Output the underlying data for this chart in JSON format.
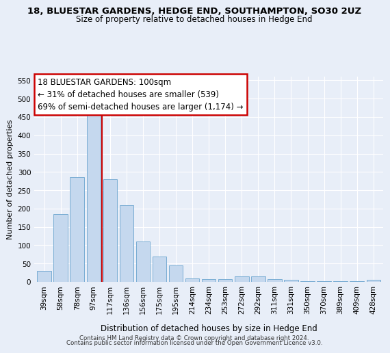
{
  "title": "18, BLUESTAR GARDENS, HEDGE END, SOUTHAMPTON, SO30 2UZ",
  "subtitle": "Size of property relative to detached houses in Hedge End",
  "xlabel": "Distribution of detached houses by size in Hedge End",
  "ylabel": "Number of detached properties",
  "bar_color": "#c5d8ee",
  "bar_edge_color": "#7aadd4",
  "categories": [
    "39sqm",
    "58sqm",
    "78sqm",
    "97sqm",
    "117sqm",
    "136sqm",
    "156sqm",
    "175sqm",
    "195sqm",
    "214sqm",
    "234sqm",
    "253sqm",
    "272sqm",
    "292sqm",
    "311sqm",
    "331sqm",
    "350sqm",
    "370sqm",
    "389sqm",
    "409sqm",
    "428sqm"
  ],
  "values": [
    30,
    185,
    285,
    455,
    280,
    210,
    110,
    70,
    45,
    10,
    8,
    8,
    15,
    15,
    8,
    5,
    2,
    2,
    2,
    2,
    5
  ],
  "ylim": [
    0,
    560
  ],
  "yticks": [
    0,
    50,
    100,
    150,
    200,
    250,
    300,
    350,
    400,
    450,
    500,
    550
  ],
  "vline_x": 3.5,
  "vline_color": "#cc0000",
  "annotation_title": "18 BLUESTAR GARDENS: 100sqm",
  "annotation_line1": "← 31% of detached houses are smaller (539)",
  "annotation_line2": "69% of semi-detached houses are larger (1,174) →",
  "annotation_box_color": "#ffffff",
  "annotation_box_edge": "#cc0000",
  "footer1": "Contains HM Land Registry data © Crown copyright and database right 2024.",
  "footer2": "Contains public sector information licensed under the Open Government Licence v3.0.",
  "bg_color": "#e8eef8",
  "plot_bg_color": "#e8eef8"
}
